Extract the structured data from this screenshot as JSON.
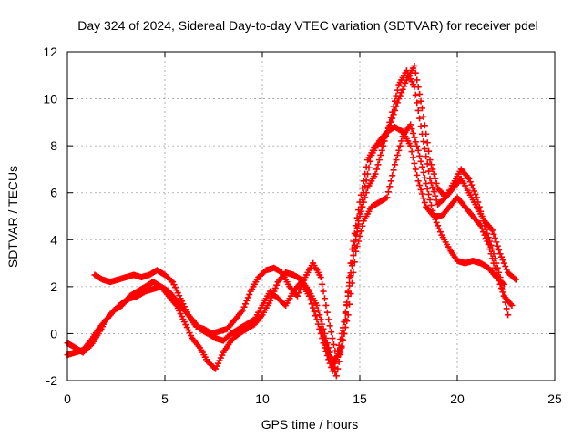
{
  "chart_data": {
    "type": "scatter",
    "title": "Day 324 of 2024, Sidereal Day-to-day VTEC variation (SDTVAR) for receiver pdel",
    "xlabel": "GPS time / hours",
    "ylabel": "SDTVAR / TECUs",
    "xlim": [
      0,
      25
    ],
    "ylim": [
      -2,
      12
    ],
    "xticks": [
      0,
      5,
      10,
      15,
      20,
      25
    ],
    "yticks": [
      -2,
      0,
      2,
      4,
      6,
      8,
      10,
      12
    ],
    "grid": true,
    "marker": "+",
    "color": "#ff0000",
    "series": [
      {
        "name": "trace-1",
        "x": [
          0.0,
          0.4,
          0.8,
          1.2,
          1.6,
          2.0,
          2.4,
          2.8,
          3.2,
          3.6,
          4.0,
          4.4,
          4.8,
          5.2,
          5.6,
          6.0,
          6.4,
          6.8,
          7.2,
          7.6,
          8.0,
          8.4,
          8.8,
          9.2,
          9.6,
          10.0,
          10.4,
          10.8,
          11.2,
          11.6,
          12.0,
          12.4,
          12.8,
          13.2,
          13.6,
          14.0,
          14.4,
          14.8,
          15.2,
          15.6,
          16.0,
          16.4,
          16.8,
          17.2,
          17.6,
          18.0,
          18.4,
          18.8,
          19.2,
          19.6,
          20.0,
          20.4,
          20.8,
          21.2,
          21.6,
          22.0,
          22.4,
          22.8
        ],
        "y": [
          -0.4,
          -0.6,
          -0.8,
          -0.5,
          0.0,
          0.6,
          1.0,
          1.3,
          1.5,
          1.6,
          1.8,
          1.9,
          2.0,
          1.8,
          1.4,
          1.0,
          0.6,
          0.2,
          0.0,
          -0.2,
          -0.3,
          0.0,
          0.2,
          0.4,
          0.6,
          1.2,
          1.8,
          1.5,
          1.2,
          1.8,
          2.2,
          1.6,
          0.6,
          -0.6,
          -1.6,
          -0.6,
          1.6,
          4.2,
          6.0,
          7.6,
          8.2,
          8.6,
          8.8,
          8.6,
          8.0,
          6.5,
          5.4,
          5.0,
          5.0,
          5.4,
          5.8,
          5.4,
          5.0,
          4.6,
          3.8,
          2.6,
          1.6,
          1.2
        ]
      },
      {
        "name": "trace-2",
        "x": [
          1.4,
          1.8,
          2.2,
          2.6,
          3.0,
          3.4,
          3.8,
          4.2,
          4.6,
          5.0,
          5.4,
          5.8,
          6.2,
          6.6,
          7.0,
          7.4,
          7.8,
          8.2,
          8.6,
          9.0,
          9.4,
          9.8,
          10.2,
          10.6,
          11.0,
          11.4,
          11.8,
          12.2,
          12.6,
          13.0,
          13.4,
          13.8,
          14.2,
          14.6,
          15.0,
          15.4,
          15.8,
          16.2,
          16.6,
          17.0,
          17.4,
          17.8,
          18.2,
          18.6,
          19.0,
          19.4,
          19.8,
          20.2,
          20.6,
          21.0,
          21.4,
          21.8,
          22.2,
          22.6,
          23.0
        ],
        "y": [
          2.5,
          2.3,
          2.2,
          2.3,
          2.4,
          2.5,
          2.4,
          2.5,
          2.7,
          2.5,
          2.2,
          1.5,
          0.8,
          0.3,
          0.2,
          0.0,
          0.1,
          0.2,
          0.6,
          1.0,
          1.8,
          2.4,
          2.7,
          2.8,
          2.6,
          2.0,
          1.6,
          2.4,
          3.0,
          2.4,
          0.6,
          -1.0,
          0.5,
          3.0,
          5.0,
          6.2,
          6.8,
          8.0,
          9.2,
          10.6,
          11.2,
          10.5,
          8.5,
          6.6,
          5.5,
          5.8,
          6.2,
          6.6,
          6.0,
          5.4,
          4.8,
          4.4,
          3.4,
          2.6,
          2.3
        ]
      },
      {
        "name": "trace-3",
        "x": [
          0.0,
          0.4,
          0.8,
          1.2,
          1.6,
          2.0,
          2.4,
          2.8,
          3.2,
          3.6,
          4.0,
          4.4,
          4.8,
          5.2,
          5.6,
          6.0,
          6.4,
          6.8,
          7.2,
          7.6,
          8.0,
          8.4,
          8.8,
          9.2,
          9.6,
          10.0,
          10.4,
          10.8,
          11.2,
          11.6,
          12.0,
          12.4,
          12.8,
          13.2,
          13.6,
          14.0,
          14.4,
          14.8,
          15.2,
          15.6,
          16.0,
          16.4,
          16.8,
          17.2,
          17.6,
          18.0,
          18.4,
          18.8,
          19.2,
          19.6,
          20.0,
          20.4,
          20.8,
          21.2,
          21.6,
          22.0,
          22.4
        ],
        "y": [
          -0.9,
          -0.8,
          -0.7,
          -0.3,
          0.2,
          0.6,
          1.0,
          1.2,
          1.6,
          1.8,
          2.0,
          2.2,
          2.0,
          1.6,
          1.2,
          0.5,
          -0.2,
          -0.6,
          -1.2,
          -1.5,
          -0.8,
          -0.3,
          0.0,
          0.2,
          0.4,
          0.8,
          1.4,
          2.2,
          2.6,
          2.5,
          2.3,
          1.8,
          1.2,
          0.0,
          -1.2,
          -0.8,
          0.8,
          3.5,
          4.8,
          5.4,
          5.6,
          5.8,
          7.2,
          8.4,
          8.9,
          7.8,
          6.4,
          5.0,
          4.2,
          3.6,
          3.1,
          3.0,
          3.1,
          3.0,
          2.8,
          2.4,
          2.1
        ]
      },
      {
        "name": "trace-4",
        "x": [
          13.0,
          13.4,
          13.8,
          14.2,
          14.6,
          15.0,
          15.4,
          15.8,
          16.2,
          16.6,
          17.0,
          17.4,
          17.8,
          18.2,
          18.6,
          19.0,
          19.4,
          19.8,
          20.2,
          20.6,
          21.0,
          21.4,
          21.8,
          22.2,
          22.6
        ],
        "y": [
          0.2,
          -0.8,
          -1.8,
          0.0,
          3.6,
          5.6,
          7.4,
          8.0,
          8.2,
          9.0,
          10.0,
          10.8,
          11.4,
          9.6,
          7.4,
          6.2,
          5.8,
          6.4,
          7.0,
          6.6,
          5.8,
          4.6,
          3.6,
          2.4,
          0.8
        ]
      }
    ]
  }
}
